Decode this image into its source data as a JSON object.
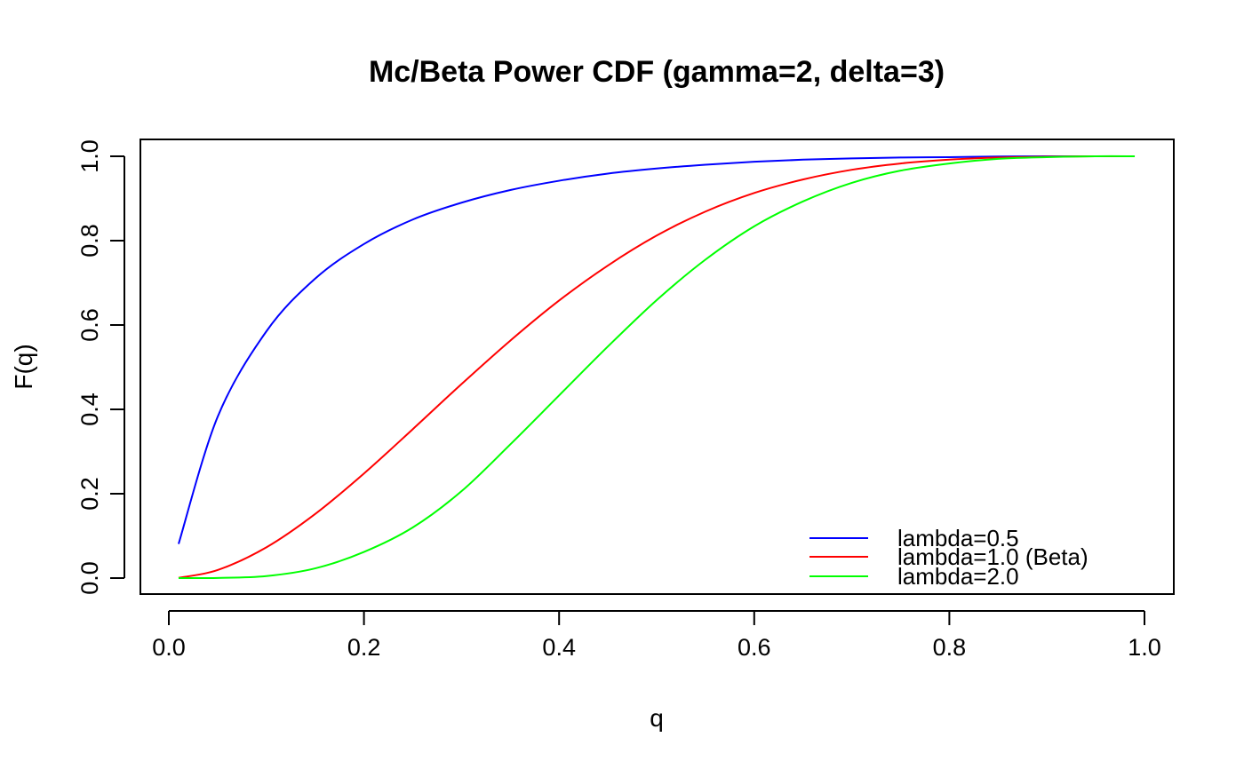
{
  "chart_data": {
    "type": "line",
    "title": "Mc/Beta Power CDF (gamma=2, delta=3)",
    "xlabel": "q",
    "ylabel": "F(q)",
    "xlim": [
      0,
      1
    ],
    "ylim": [
      0,
      1
    ],
    "x_ticks": [
      "0.0",
      "0.2",
      "0.4",
      "0.6",
      "0.8",
      "1.0"
    ],
    "y_ticks": [
      "0.0",
      "0.2",
      "0.4",
      "0.6",
      "0.8",
      "1.0"
    ],
    "grid": false,
    "legend_position": "bottom-right",
    "x": [
      0.01,
      0.05,
      0.1,
      0.15,
      0.2,
      0.25,
      0.3,
      0.35,
      0.4,
      0.45,
      0.5,
      0.55,
      0.6,
      0.65,
      0.7,
      0.75,
      0.8,
      0.85,
      0.9,
      0.95,
      0.99
    ],
    "series": [
      {
        "name": "lambda=0.5",
        "color": "#0000ff",
        "values": [
          0.081,
          0.382,
          0.585,
          0.71,
          0.792,
          0.85,
          0.89,
          0.92,
          0.942,
          0.959,
          0.971,
          0.98,
          0.987,
          0.992,
          0.995,
          0.997,
          0.998,
          0.9995,
          0.9999,
          1.0,
          1.0
        ]
      },
      {
        "name": "lambda=1.0 (Beta)",
        "color": "#ff0000",
        "values": [
          0.0007,
          0.019,
          0.073,
          0.152,
          0.248,
          0.353,
          0.46,
          0.563,
          0.658,
          0.741,
          0.812,
          0.869,
          0.913,
          0.945,
          0.968,
          0.983,
          0.992,
          0.997,
          0.999,
          1.0,
          1.0
        ]
      },
      {
        "name": "lambda=2.0",
        "color": "#00ff00",
        "values": [
          0.0,
          0.0003,
          0.0048,
          0.023,
          0.062,
          0.12,
          0.206,
          0.317,
          0.433,
          0.549,
          0.659,
          0.755,
          0.834,
          0.893,
          0.937,
          0.966,
          0.983,
          0.994,
          0.998,
          1.0,
          1.0
        ]
      }
    ]
  }
}
